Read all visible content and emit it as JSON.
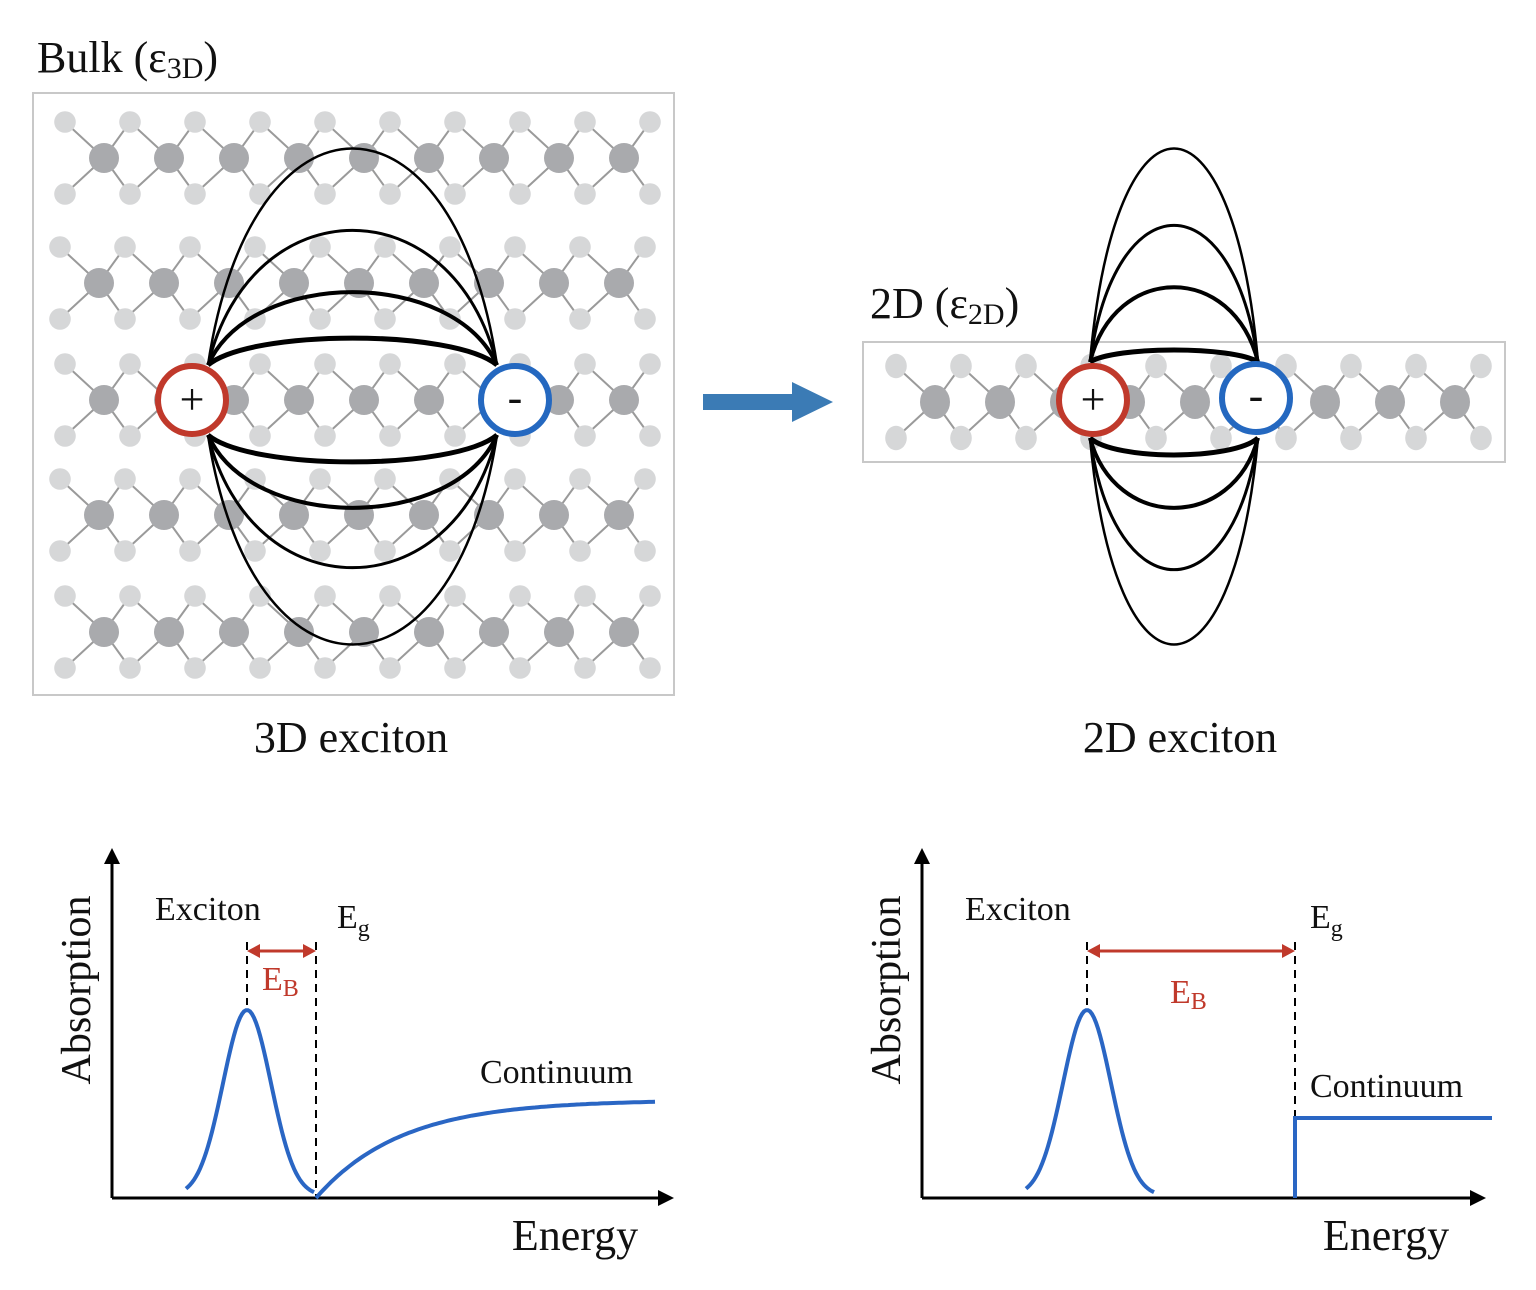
{
  "top": {
    "bulk_label": {
      "main": "Bulk (",
      "eps": "ε",
      "sub": "3D",
      "close": ")"
    },
    "twod_label": {
      "main": "2D (",
      "eps": "ε",
      "sub": "2D",
      "close": ")"
    },
    "bulk_caption": "3D exciton",
    "twod_caption": "2D exciton",
    "hole_symbol": "+",
    "electron_symbol": "-"
  },
  "plots": [
    {
      "ylabel": "Absorption",
      "xlabel": "Energy",
      "peak_label": "Exciton",
      "gap_label": {
        "main": "E",
        "sub": "g"
      },
      "binding_label": {
        "main": "E",
        "sub": "B"
      },
      "continuum_label": "Continuum",
      "continuum_shape": "smooth rise"
    },
    {
      "ylabel": "Absorption",
      "xlabel": "Energy",
      "peak_label": "Exciton",
      "gap_label": {
        "main": "E",
        "sub": "g"
      },
      "binding_label": {
        "main": "E",
        "sub": "B"
      },
      "continuum_label": "Continuum",
      "continuum_shape": "step"
    }
  ],
  "colors": {
    "hole": "#c0392b",
    "electron": "#2468c0",
    "curve": "#2a66c4",
    "binding": "#c0392b",
    "arrow": "#3b7bb5",
    "atom_dark": "#a9aaad",
    "atom_light": "#d6d7d8"
  }
}
